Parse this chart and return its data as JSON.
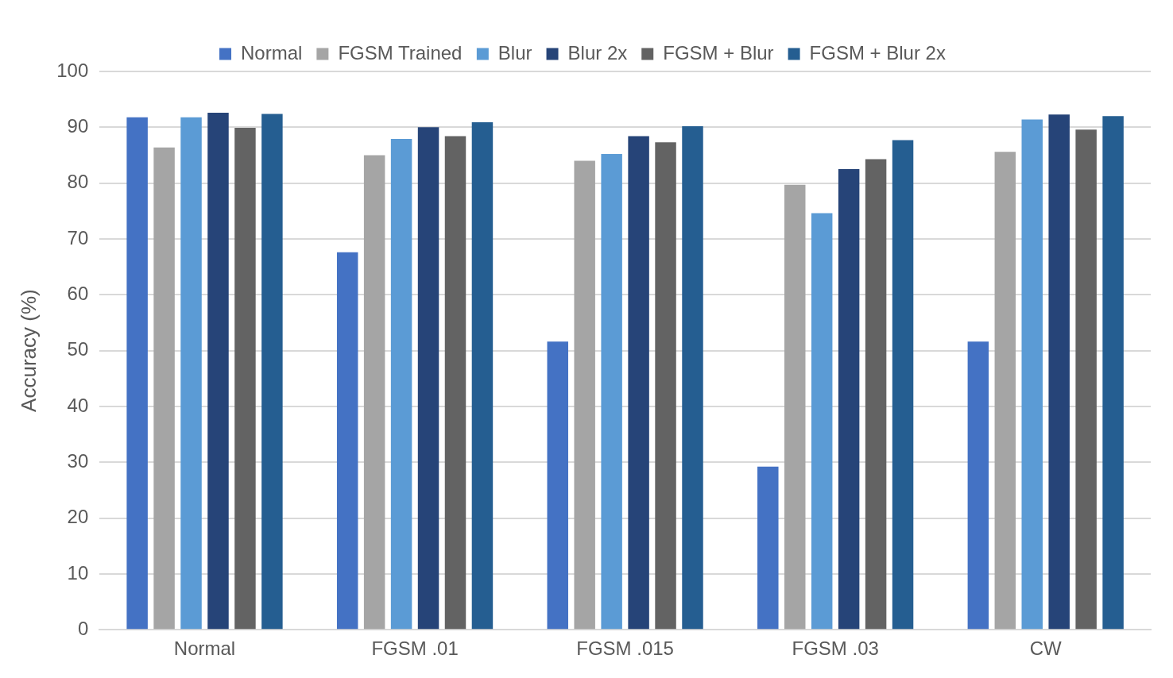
{
  "chart_data": {
    "type": "bar",
    "ylabel": "Accuracy (%)",
    "categories": [
      "Normal",
      "FGSM .01",
      "FGSM .015",
      "FGSM .03",
      "CW"
    ],
    "series": [
      {
        "name": "Normal",
        "color": "#4472c4",
        "values": [
          91.8,
          67.6,
          51.6,
          29.2,
          51.6
        ]
      },
      {
        "name": "FGSM Trained",
        "color": "#a5a5a5",
        "values": [
          86.4,
          85.0,
          84.0,
          79.7,
          85.6
        ]
      },
      {
        "name": "Blur",
        "color": "#5b9bd5",
        "values": [
          91.8,
          87.9,
          85.2,
          74.6,
          91.4
        ]
      },
      {
        "name": "Blur 2x",
        "color": "#264478",
        "values": [
          92.6,
          90.0,
          88.4,
          82.5,
          92.3
        ]
      },
      {
        "name": "FGSM + Blur",
        "color": "#636363",
        "values": [
          89.9,
          88.4,
          87.3,
          84.3,
          89.6
        ]
      },
      {
        "name": "FGSM + Blur 2x",
        "color": "#255e91",
        "values": [
          92.4,
          90.9,
          90.2,
          87.7,
          92.0
        ]
      }
    ],
    "ylim": [
      0,
      100
    ],
    "yticks": [
      0,
      10,
      20,
      30,
      40,
      50,
      60,
      70,
      80,
      90,
      100
    ],
    "grid": "y",
    "legend": "top"
  }
}
